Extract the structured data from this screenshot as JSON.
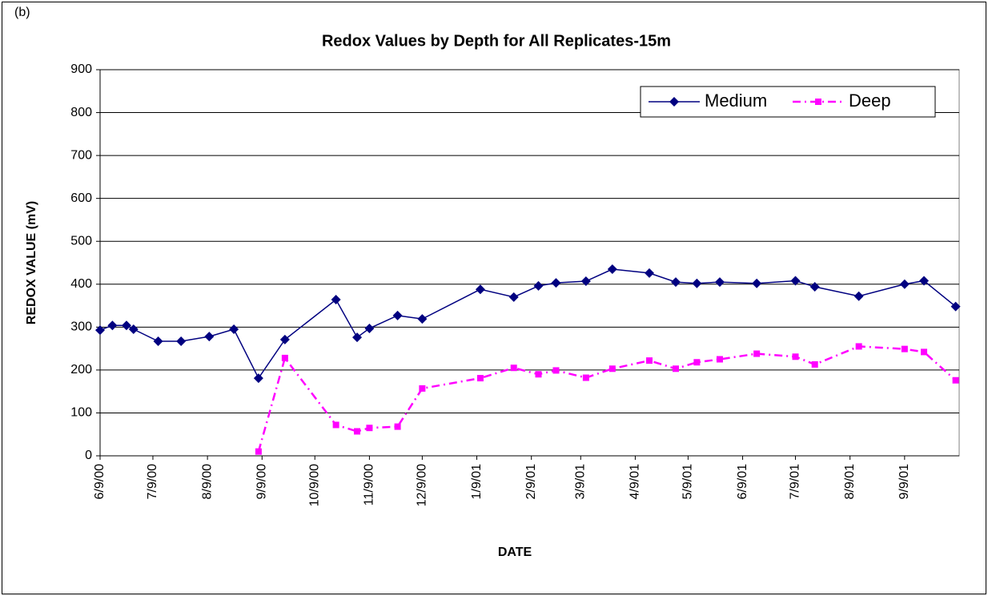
{
  "chart_data": {
    "type": "line",
    "panel_label": "(b)",
    "title": "Redox Values by Depth for All Replicates-15m",
    "x_label": "DATE",
    "y_label": "REDOX VALUE (mV)",
    "x": [
      "2000-06-09",
      "2000-06-16",
      "2000-06-24",
      "2000-06-28",
      "2000-07-12",
      "2000-07-25",
      "2000-08-10",
      "2000-08-24",
      "2000-09-07",
      "2000-09-22",
      "2000-10-21",
      "2000-11-02",
      "2000-11-09",
      "2000-11-25",
      "2000-12-09",
      "2001-01-11",
      "2001-01-30",
      "2001-02-13",
      "2001-02-23",
      "2001-03-12",
      "2001-03-27",
      "2001-04-17",
      "2001-05-02",
      "2001-05-14",
      "2001-05-27",
      "2001-06-17",
      "2001-07-09",
      "2001-07-20",
      "2001-08-14",
      "2001-09-09",
      "2001-09-20",
      "2001-10-08"
    ],
    "series": [
      {
        "name": "Medium",
        "color": "#000080",
        "marker": "diamond",
        "dash": "solid",
        "values": [
          293,
          304,
          304,
          295,
          267,
          267,
          278,
          295,
          181,
          271,
          364,
          276,
          297,
          327,
          319,
          388,
          370,
          396,
          403,
          407,
          435,
          426,
          405,
          402,
          405,
          402,
          408,
          394,
          372,
          400,
          408,
          348
        ]
      },
      {
        "name": "Deep",
        "color": "#ff00ff",
        "marker": "square",
        "dash": "dashdot",
        "values": [
          null,
          null,
          null,
          null,
          null,
          null,
          null,
          null,
          10,
          228,
          72,
          57,
          65,
          68,
          157,
          181,
          205,
          190,
          199,
          182,
          203,
          222,
          203,
          218,
          225,
          238,
          231,
          213,
          255,
          249,
          242,
          176
        ]
      }
    ],
    "xlim": [
      "2000-06-09",
      "2001-10-10"
    ],
    "xticks": [
      {
        "value": "2000-06-09",
        "label": "6/9/00"
      },
      {
        "value": "2000-07-09",
        "label": "7/9/00"
      },
      {
        "value": "2000-08-09",
        "label": "8/9/00"
      },
      {
        "value": "2000-09-09",
        "label": "9/9/00"
      },
      {
        "value": "2000-10-09",
        "label": "10/9/00"
      },
      {
        "value": "2000-11-09",
        "label": "11/9/00"
      },
      {
        "value": "2000-12-09",
        "label": "12/9/00"
      },
      {
        "value": "2001-01-09",
        "label": "1/9/01"
      },
      {
        "value": "2001-02-09",
        "label": "2/9/01"
      },
      {
        "value": "2001-03-09",
        "label": "3/9/01"
      },
      {
        "value": "2001-04-09",
        "label": "4/9/01"
      },
      {
        "value": "2001-05-09",
        "label": "5/9/01"
      },
      {
        "value": "2001-06-09",
        "label": "6/9/01"
      },
      {
        "value": "2001-07-09",
        "label": "7/9/01"
      },
      {
        "value": "2001-08-09",
        "label": "8/9/01"
      },
      {
        "value": "2001-09-09",
        "label": "9/9/01"
      }
    ],
    "ylim": [
      0,
      900
    ],
    "yticks": [
      0,
      100,
      200,
      300,
      400,
      500,
      600,
      700,
      800,
      900
    ],
    "grid": true,
    "legend": "top-right"
  }
}
